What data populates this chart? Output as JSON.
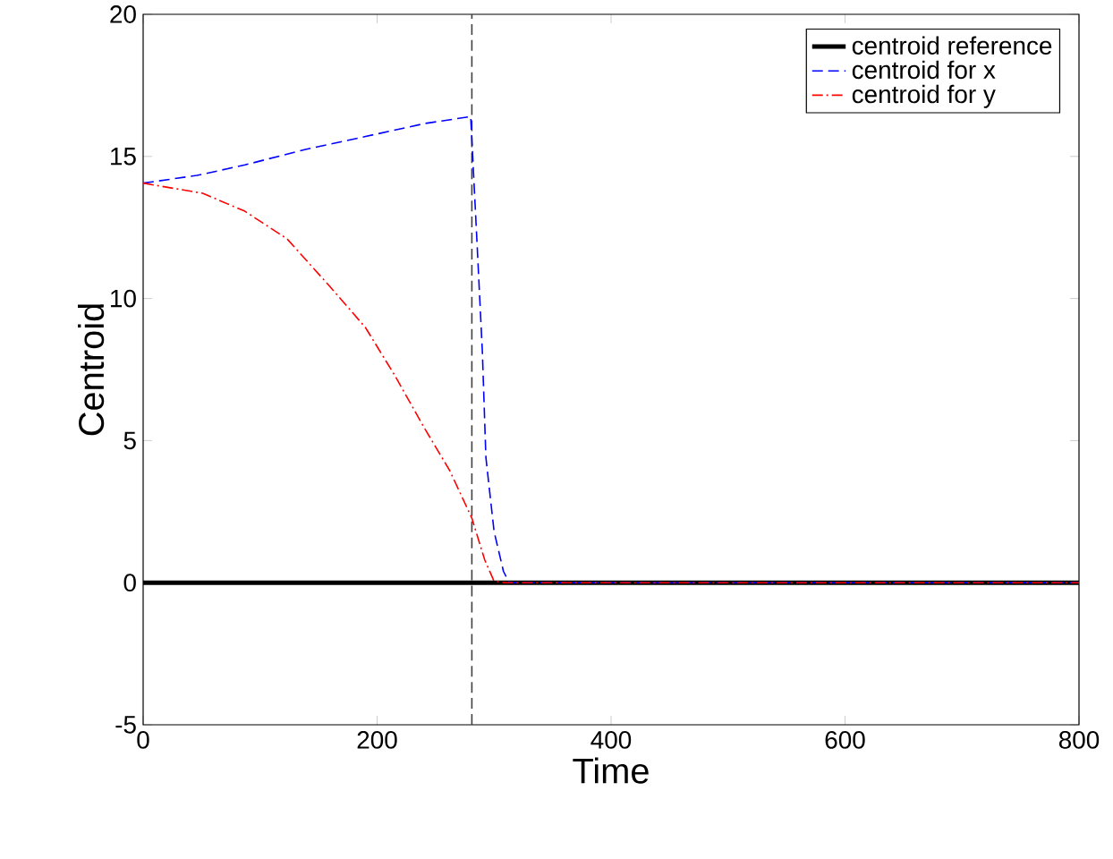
{
  "chart_data": {
    "type": "line",
    "xlabel": "Time",
    "ylabel": "Centroid",
    "xlim": [
      0,
      800
    ],
    "ylim": [
      -5,
      20
    ],
    "xticks": [
      0,
      200,
      400,
      600,
      800
    ],
    "yticks": [
      -5,
      0,
      5,
      10,
      15,
      20
    ],
    "grid": false,
    "legend": "top right",
    "marker": "none",
    "series": [
      {
        "name": "centroid reference",
        "color": "#000000",
        "line_style": "solid",
        "x": [
          0,
          800
        ],
        "values": [
          0,
          0
        ]
      },
      {
        "name": "centroid for x",
        "color": "#0000ff",
        "line_style": "dashed",
        "x": [
          0,
          46,
          87,
          138,
          190,
          241,
          280,
          285,
          290,
          293,
          300,
          308,
          313,
          400,
          600,
          800
        ],
        "values": [
          14.06,
          14.33,
          14.7,
          15.24,
          15.7,
          16.16,
          16.4,
          12.3,
          8.1,
          4.4,
          1.8,
          0.4,
          0,
          0,
          0,
          0
        ]
      },
      {
        "name": "centroid for y",
        "color": "#ff0000",
        "line_style": "dashdot",
        "x": [
          0,
          51,
          87,
          123,
          159,
          190,
          215,
          241,
          262,
          281,
          292,
          300,
          310,
          400,
          600,
          800
        ],
        "values": [
          14.06,
          13.7,
          13.07,
          12.1,
          10.45,
          8.98,
          7.3,
          5.4,
          3.95,
          2.27,
          0.8,
          0.05,
          0,
          0,
          0,
          0
        ]
      }
    ],
    "ref_lines": [
      {
        "axis": "x",
        "value": 281,
        "color": "#404040",
        "line_style": "dashed"
      }
    ]
  }
}
